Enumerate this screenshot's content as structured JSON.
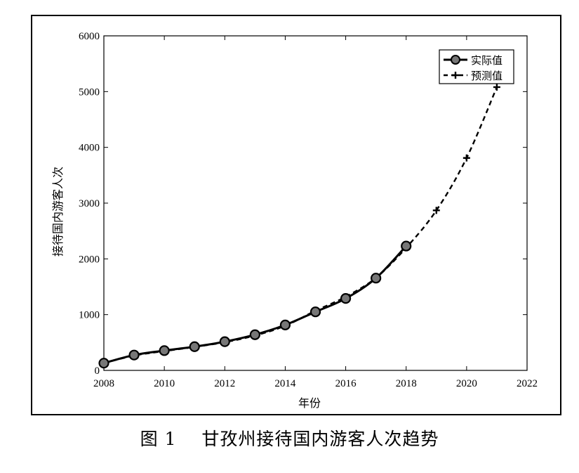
{
  "caption": {
    "figure_number": "图 1",
    "title": "甘孜州接待国内游客人次趋势"
  },
  "chart_data": {
    "type": "line",
    "xlabel": "年份",
    "ylabel": "接待国内游客人次",
    "xlim": [
      2008,
      2022
    ],
    "ylim": [
      0,
      6000
    ],
    "x_ticks": [
      "2008",
      "2010",
      "2012",
      "2014",
      "2016",
      "2018",
      "2020",
      "2022"
    ],
    "y_ticks": [
      "0",
      "1000",
      "2000",
      "3000",
      "4000",
      "5000",
      "6000"
    ],
    "grid": false,
    "legend_position": "top-right",
    "series": [
      {
        "name": "实际值",
        "style": "solid-circle",
        "color": "#000000",
        "x": [
          2008,
          2009,
          2010,
          2011,
          2012,
          2013,
          2014,
          2015,
          2016,
          2017,
          2018
        ],
        "y": [
          130,
          275,
          355,
          425,
          515,
          640,
          815,
          1050,
          1290,
          1655,
          2230
        ]
      },
      {
        "name": "预测值",
        "style": "dashed-plus",
        "color": "#000000",
        "x": [
          2008,
          2009,
          2010,
          2011,
          2012,
          2013,
          2014,
          2015,
          2016,
          2017,
          2018,
          2019,
          2020,
          2021
        ],
        "y": [
          130,
          265,
          345,
          420,
          505,
          625,
          800,
          1070,
          1320,
          1660,
          2200,
          2870,
          3810,
          5080
        ]
      }
    ]
  }
}
